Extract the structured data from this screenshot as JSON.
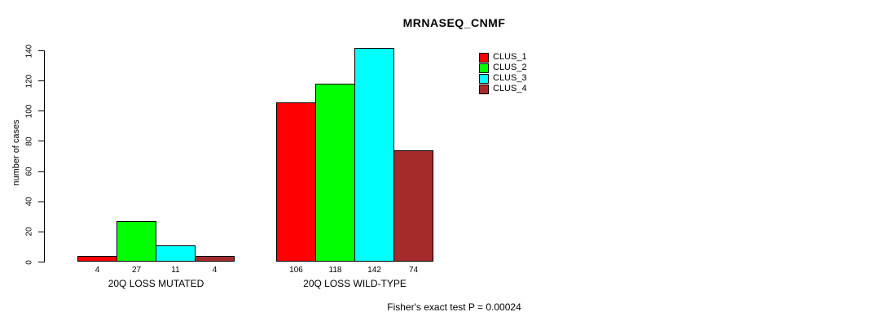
{
  "chart_data": {
    "type": "bar",
    "title": "MRNASEQ_CNMF",
    "ylabel": "number of cases",
    "xlabel": "",
    "categories": [
      "20Q LOSS MUTATED",
      "20Q LOSS WILD-TYPE"
    ],
    "series": [
      {
        "name": "CLUS_1",
        "color": "#FF0000",
        "values": [
          4,
          106
        ]
      },
      {
        "name": "CLUS_2",
        "color": "#00FF00",
        "values": [
          27,
          118
        ]
      },
      {
        "name": "CLUS_3",
        "color": "#00FFFF",
        "values": [
          11,
          142
        ]
      },
      {
        "name": "CLUS_4",
        "color": "#A52A2A",
        "values": [
          4,
          74
        ]
      }
    ],
    "ylim": [
      0,
      140
    ],
    "yticks": [
      0,
      20,
      40,
      60,
      80,
      100,
      120,
      140
    ],
    "grid": false,
    "show_bar_values": true,
    "legend_position": "top-right",
    "legend_entries": [
      "CLUS_1",
      "CLUS_2",
      "CLUS_3",
      "CLUS_4"
    ],
    "footer": "Fisher's exact test P = 0.00024",
    "axis_color": "#000000",
    "bar_border_color": "#000000",
    "background_color": "#FFFFFF"
  }
}
